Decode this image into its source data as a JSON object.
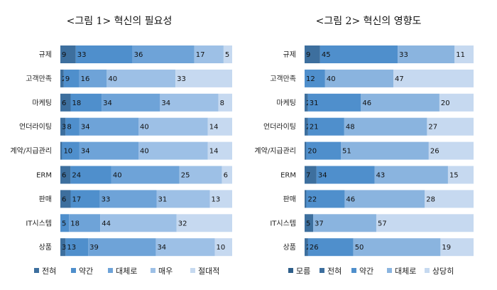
{
  "chart_data": [
    {
      "type": "bar",
      "orientation": "horizontal",
      "stacked": "percent",
      "title": "<그림 1> 혁신의 필요성",
      "categories": [
        "규제",
        "고객만족",
        "마케팅",
        "언더라이팅",
        "계약/지급관리",
        "ERM",
        "판매",
        "IT시스템",
        "상품"
      ],
      "series": [
        {
          "name": "전혀",
          "values": [
            9,
            2,
            6,
            3,
            1,
            6,
            6,
            0,
            3
          ],
          "labels": [
            "9",
            "2",
            "6",
            "3",
            "1",
            "6",
            "6",
            "0",
            "3"
          ]
        },
        {
          "name": "약간",
          "values": [
            33,
            9,
            18,
            8,
            10,
            24,
            17,
            5,
            13
          ],
          "labels": [
            "33",
            "9",
            "18",
            "8",
            "10",
            "24",
            "17",
            "5",
            "13"
          ]
        },
        {
          "name": "대체로",
          "values": [
            36,
            16,
            34,
            34,
            34,
            40,
            33,
            18,
            39
          ],
          "labels": [
            "36",
            "16",
            "34",
            "34",
            "34",
            "40",
            "33",
            "18",
            "39"
          ]
        },
        {
          "name": "매우",
          "values": [
            17,
            40,
            34,
            40,
            40,
            25,
            31,
            44,
            34
          ],
          "labels": [
            "17",
            "40",
            "34",
            "40",
            "40",
            "25",
            "31",
            "44",
            "34"
          ]
        },
        {
          "name": "절대적",
          "values": [
            5,
            33,
            8,
            14,
            14,
            6,
            13,
            32,
            10
          ],
          "labels": [
            "5",
            "33",
            "8",
            "14",
            "14",
            "6",
            "13",
            "32",
            "10"
          ]
        }
      ],
      "colors": [
        "#3d6f9e",
        "#4f8fcc",
        "#6ea3d8",
        "#9dc0e6",
        "#c6d9f0"
      ]
    },
    {
      "type": "bar",
      "orientation": "horizontal",
      "stacked": "percent",
      "title": "<그림 2> 혁신의 영향도",
      "categories": [
        "규제",
        "고객만족",
        "마케팅",
        "언더라이팅",
        "계약/지급관리",
        "ERM",
        "판매",
        "IT시스템",
        "상품"
      ],
      "series": [
        {
          "name": "모름",
          "values": [
            0,
            0,
            0,
            0,
            0,
            0,
            0,
            0,
            0
          ],
          "labels": [
            "",
            "0",
            "",
            "",
            "",
            "",
            "",
            "0",
            ""
          ]
        },
        {
          "name": "전혀",
          "values": [
            9,
            0,
            2,
            2,
            1,
            7,
            1,
            5,
            2
          ],
          "labels": [
            "9",
            "",
            "2",
            "2",
            "1",
            "7",
            "1",
            "5",
            "2"
          ]
        },
        {
          "name": "약간",
          "values": [
            45,
            12,
            31,
            21,
            20,
            34,
            22,
            0,
            26
          ],
          "labels": [
            "45",
            "12",
            "31",
            "21",
            "20",
            "34",
            "22",
            "",
            "26"
          ]
        },
        {
          "name": "대체로",
          "values": [
            33,
            40,
            46,
            48,
            51,
            43,
            46,
            37,
            50
          ],
          "labels": [
            "33",
            "40",
            "46",
            "48",
            "51",
            "43",
            "46",
            "37",
            "50"
          ]
        },
        {
          "name": "상당히",
          "values": [
            11,
            47,
            20,
            27,
            26,
            15,
            28,
            57,
            19
          ],
          "labels": [
            "11",
            "47",
            "20",
            "27",
            "26",
            "15",
            "28",
            "57",
            "19"
          ]
        }
      ],
      "colors": [
        "#2f5f8a",
        "#3d6f9e",
        "#4f8fcc",
        "#8ab4df",
        "#c6d9f0"
      ]
    }
  ]
}
